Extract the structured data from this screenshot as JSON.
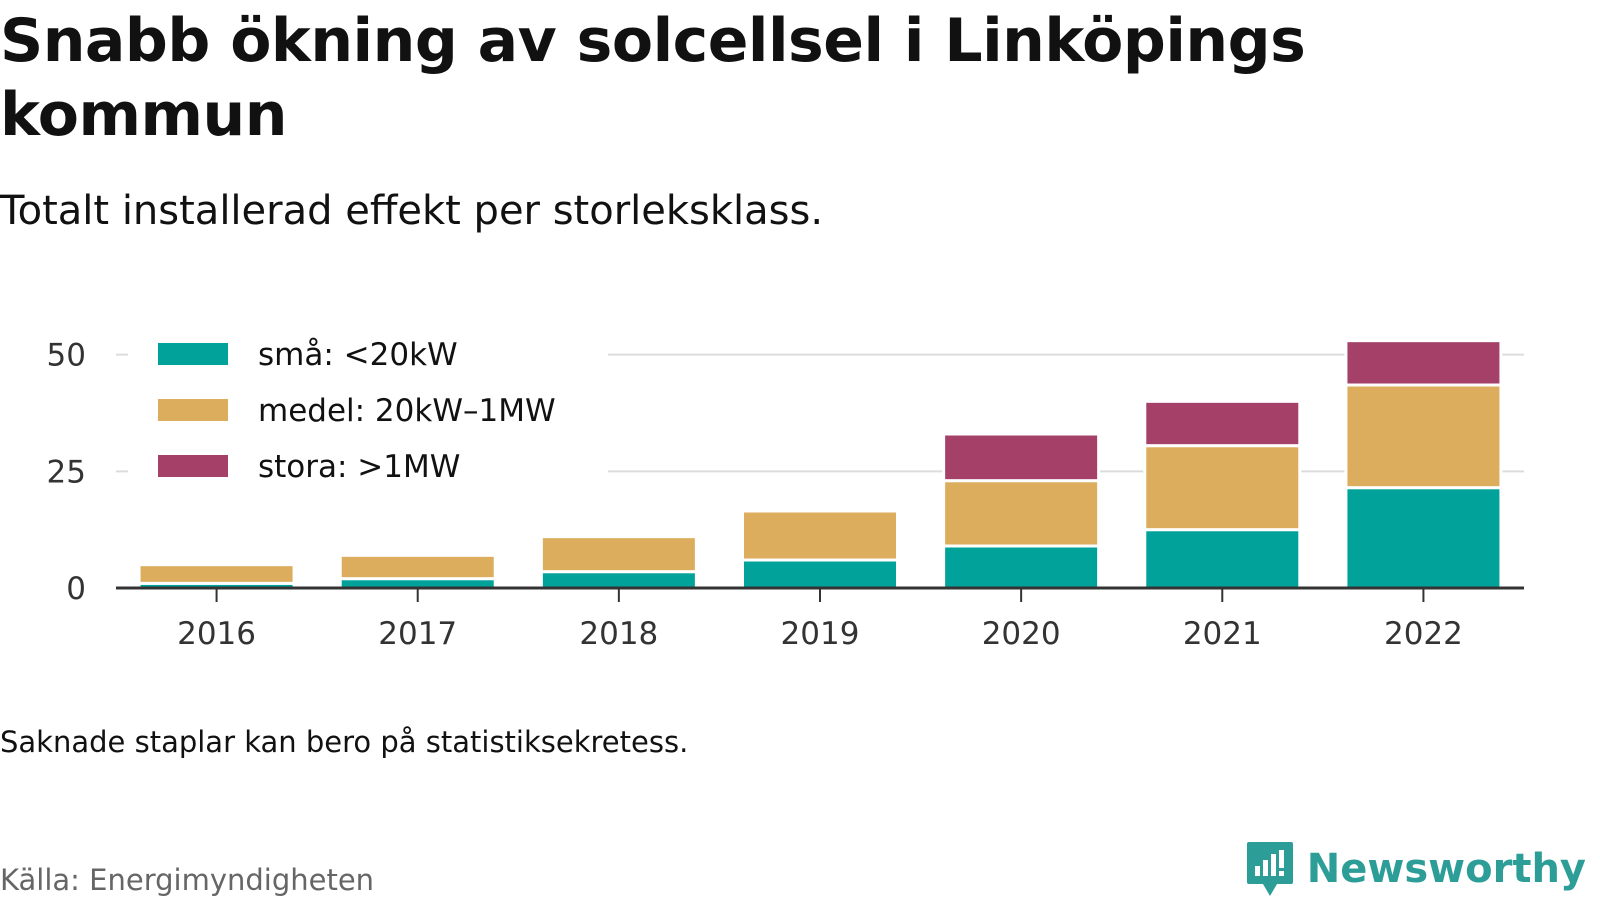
{
  "title": "Snabb ökning av solcellsel i Linköpings kommun",
  "subtitle": "Totalt installerad effekt per storleksklass.",
  "note": "Saknade staplar kan bero på statistiksekretess.",
  "source": "Källa: Energimyndigheten",
  "brand": {
    "name": "Newsworthy",
    "color": "#2d9d98"
  },
  "chart_data": {
    "type": "bar",
    "stacked": true,
    "categories": [
      "2016",
      "2017",
      "2018",
      "2019",
      "2020",
      "2021",
      "2022"
    ],
    "series": [
      {
        "name": "små: <20kW",
        "color": "#00a29a",
        "values": [
          1.0,
          2.0,
          3.5,
          6.0,
          9.0,
          12.5,
          21.5
        ]
      },
      {
        "name": "medel: 20kW–1MW",
        "color": "#dbad5c",
        "values": [
          4.0,
          5.0,
          7.5,
          10.5,
          14.0,
          18.0,
          22.0
        ]
      },
      {
        "name": "stora: >1MW",
        "color": "#a54168",
        "values": [
          0,
          0,
          0,
          0,
          10.0,
          9.5,
          9.5
        ]
      }
    ],
    "ylim": [
      0,
      54
    ],
    "yticks": [
      0,
      25,
      50
    ],
    "grid": true,
    "legend_position": "top-left",
    "xlabel": "",
    "ylabel": ""
  }
}
